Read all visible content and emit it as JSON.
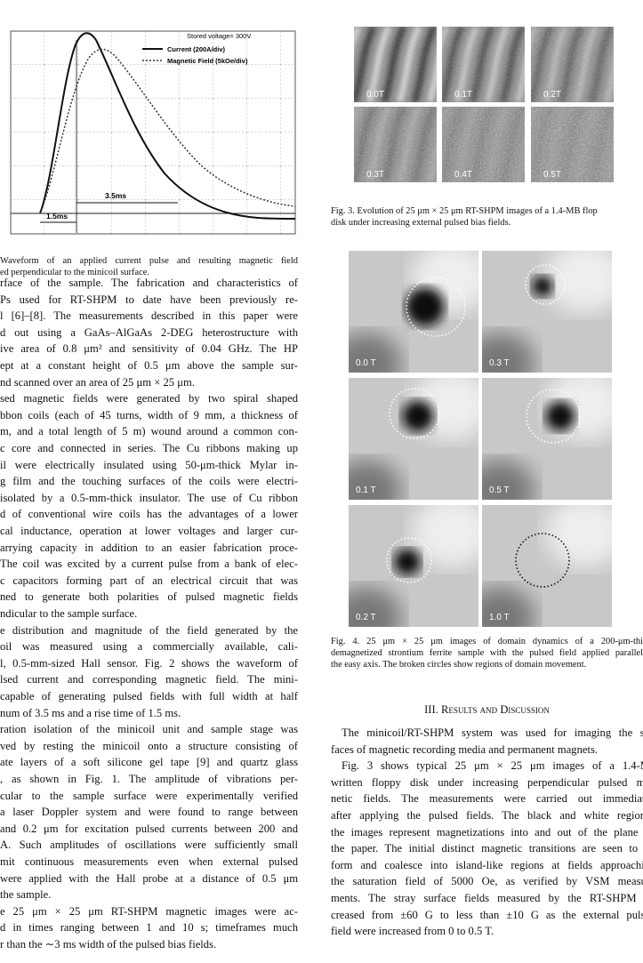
{
  "figure2": {
    "annotations": {
      "stored_voltage": "Stored voltage= 300V",
      "legend_current": "Current (200A/div)",
      "legend_field": "Magnetic Field (5kOe/div)",
      "width": "3.5ms",
      "rise": "1.5ms"
    },
    "caption": [
      "Waveform of an applied current pulse and resulting magnetic field",
      "ed perpendicular to the minicoil surface."
    ]
  },
  "left_column": {
    "paragraphs": [
      [
        "rface of the sample. The fabrication and characteristics of",
        "Ps used for RT-SHPM to date have been previously re-",
        "l [6]–[8]. The measurements described in this paper were",
        "d out using a GaAs–AlGaAs 2-DEG heterostructure with",
        "ive area of 0.8 μm² and sensitivity of 0.04 GHz. The HP",
        "ept at a constant height of 0.5 μm above the sample sur-",
        "nd scanned over an area of 25 μm × 25 μm."
      ],
      [
        "sed magnetic fields were generated by two spiral shaped",
        "bbon coils (each of 45 turns, width of 9 mm, a thickness of",
        "m, and a total length of 5 m) wound around a common con-",
        "c core and connected in series. The Cu ribbons making up",
        "il were electrically insulated using 50-μm-thick Mylar in-",
        "g film and the touching surfaces of the coils were electri-",
        "isolated by a 0.5-mm-thick insulator. The use of Cu ribbon",
        "d of conventional wire coils has the advantages of a lower",
        "cal inductance, operation at lower voltages and larger cur-",
        "arrying capacity in addition to an easier fabrication proce-",
        "The coil was excited by a current pulse from a bank of elec-",
        "c capacitors forming part of an electrical circuit that was",
        "ned to generate both polarities of pulsed magnetic fields",
        "ndicular to the sample surface."
      ],
      [
        "e distribution and magnitude of the field generated by the",
        "oil was measured using a commercially available, cali-",
        "l, 0.5-mm-sized Hall sensor. Fig. 2 shows the waveform of",
        "lsed current and corresponding magnetic field. The mini-",
        "capable of generating pulsed fields with full width at half",
        "num of 3.5 ms and a rise time of 1.5 ms."
      ],
      [
        "ration isolation of the minicoil unit and sample stage was",
        "ved by resting the minicoil onto a structure consisting of",
        "ate layers of a soft silicone gel tape [9] and quartz glass",
        ", as shown in Fig. 1. The amplitude of vibrations per-",
        "cular to the sample surface were experimentally verified",
        "a laser Doppler system and were found to range between",
        "and 0.2 μm for excitation pulsed currents between 200 and",
        "A. Such amplitudes of oscillations were sufficiently small",
        "mit continuous measurements even when external pulsed",
        "were applied with the Hall probe at a distance of 0.5 μm",
        "the sample."
      ],
      [
        "e 25 μm × 25 μm RT-SHPM magnetic images were ac-",
        "d in times ranging between 1 and 10 s; timeframes much",
        "r than the ∼3 ms width of the pulsed bias fields."
      ]
    ]
  },
  "figure3": {
    "panels": [
      "0.0T",
      "0.1T",
      "0.2T",
      "0.3T",
      "0.4T",
      "0.5T"
    ],
    "caption": [
      "Fig. 3.   Evolution of 25 μm × 25 μm RT-SHPM images of a 1.4-MB flop",
      "disk under increasing external pulsed bias fields."
    ]
  },
  "figure4": {
    "panels": [
      "0.0 T",
      "0.3 T",
      "0.1 T",
      "0.5 T",
      "0.2 T",
      "1.0 T"
    ],
    "caption": [
      "Fig. 4.   25 μm × 25 μm images of domain dynamics of a 200-μm-thi",
      "demagnetized strontium ferrite sample with the pulsed field applied parallel",
      "the easy axis. The broken circles show regions of domain movement."
    ]
  },
  "section": {
    "heading": "III. Results and Discussion",
    "paragraphs": [
      [
        "The minicoil/RT-SHPM system was used for imaging the su",
        "faces of magnetic recording media and permanent magnets."
      ],
      [
        "Fig. 3 shows typical 25 μm × 25 μm images of a 1.4-M",
        "written floppy disk under increasing perpendicular pulsed ma",
        "netic fields. The measurements were carried out immediate",
        "after applying the pulsed fields. The black and white regions",
        "the images represent magnetizations into and out of the plane o",
        "the paper. The initial distinct magnetic transitions are seen to d",
        "form and coalesce into island-like regions at fields approachin",
        "the saturation field of 5000 Oe, as verified by VSM measur",
        "ments. The stray surface fields measured by the RT-SHPM d",
        "creased from ±60 G to less than ±10 G as the external pulse",
        "field were increased from 0 to 0.5 T."
      ]
    ]
  }
}
